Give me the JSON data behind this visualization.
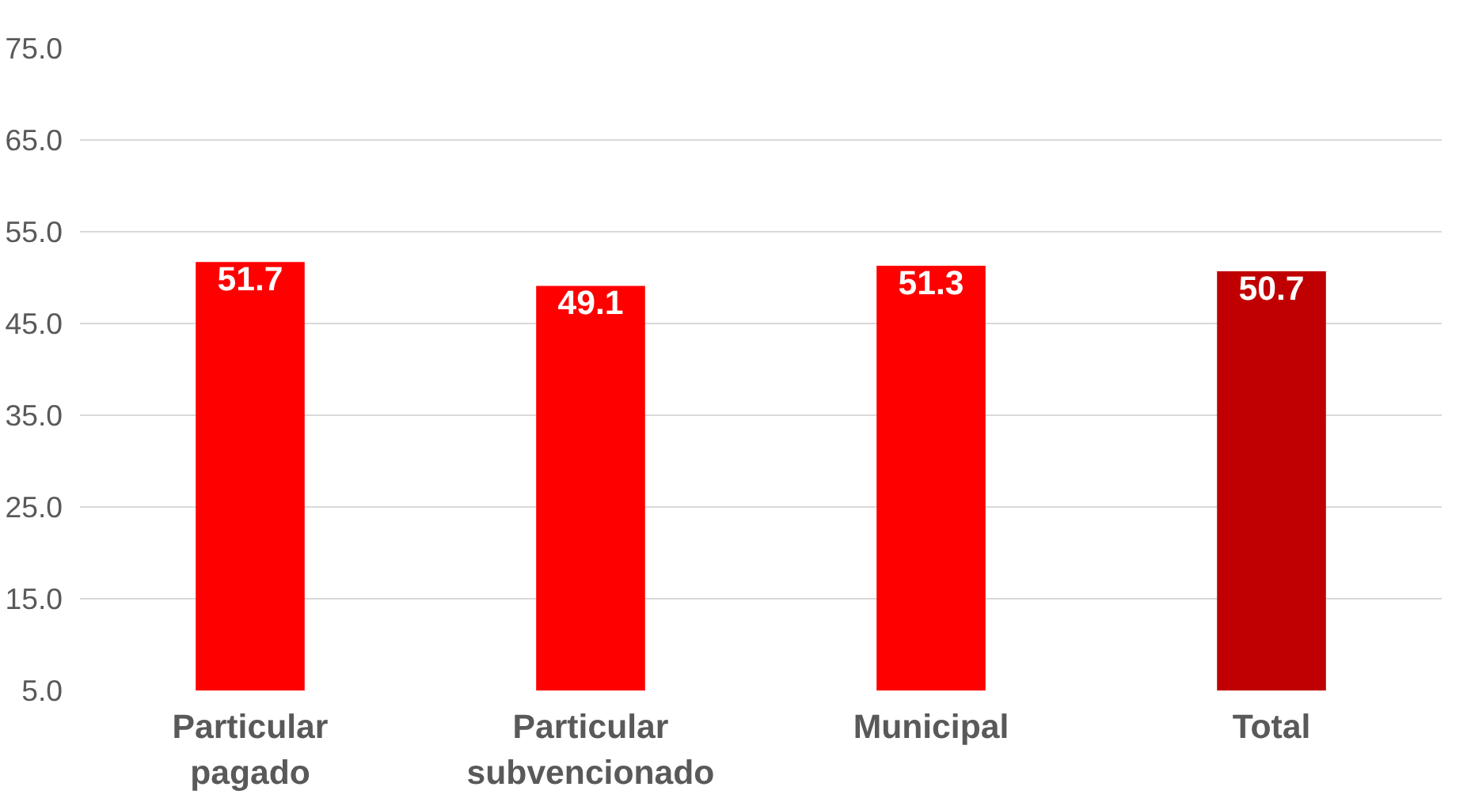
{
  "chart_data": {
    "type": "bar",
    "categories": [
      "Particular pagado",
      "Particular subvencionado",
      "Municipal",
      "Total"
    ],
    "values": [
      51.7,
      49.1,
      51.3,
      50.7
    ],
    "colors": [
      "#ff0000",
      "#ff0000",
      "#ff0000",
      "#c00000"
    ],
    "ylim": [
      5,
      75
    ],
    "yticks": [
      {
        "value": 5,
        "label": "5.0"
      },
      {
        "value": 15,
        "label": "15.0"
      },
      {
        "value": 25,
        "label": "25.0"
      },
      {
        "value": 35,
        "label": "35.0"
      },
      {
        "value": 45,
        "label": "45.0"
      },
      {
        "value": 55,
        "label": "55.0"
      },
      {
        "value": 65,
        "label": "65.0"
      },
      {
        "value": 75,
        "label": "75.0"
      }
    ],
    "grid": "y",
    "data_labels": true
  }
}
